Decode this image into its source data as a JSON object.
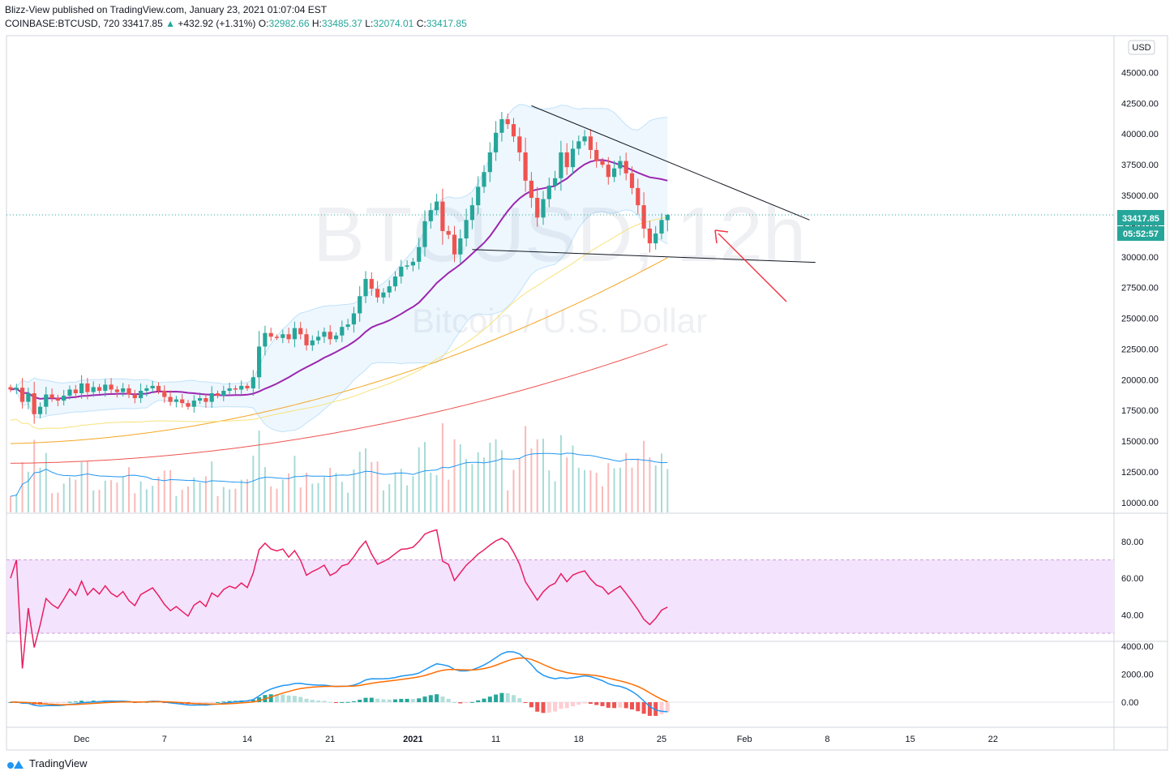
{
  "header": {
    "published_line": "Blizz-View published on TradingView.com, January 23, 2021 01:07:04 EST",
    "symbol": "COINBASE:BTCUSD, 720",
    "last": "33417.85",
    "arrow": "▲",
    "change": "+432.92 (+1.31%)",
    "o_label": "O:",
    "o_value": "32982.66",
    "h_label": "H:",
    "h_value": "33485.37",
    "l_label": "L:",
    "l_value": "32074.01",
    "c_label": "C:",
    "c_value": "33417.85"
  },
  "watermark": {
    "symbol": "BTCUSD, 12h",
    "description": "Bitcoin / U.S. Dollar"
  },
  "currency_badge": "USD",
  "price_tag": {
    "price": "33417.85",
    "countdown": "05:52:57"
  },
  "footer": {
    "brand": "TradingView"
  },
  "colors": {
    "up": "#26a69a",
    "down": "#ef5350",
    "bb": "#2196f3",
    "ma20": "#9c27b0",
    "ma50": "#f7e27b",
    "ma100": "#f5a623",
    "ma200": "#ef5350",
    "rsi": "#e91e63",
    "macd": "#2196f3",
    "signal": "#ff6d00"
  },
  "chart_data": [
    {
      "type": "candlestick",
      "title": "COINBASE:BTCUSD, 720",
      "y_ticks": [
        10000,
        12500,
        15000,
        17500,
        20000,
        22500,
        25000,
        27500,
        30000,
        32500,
        35000,
        37500,
        40000,
        42500,
        45000
      ],
      "y_tick_labels": [
        "10000.00",
        "12500.00",
        "15000.00",
        "17500.00",
        "20000.00",
        "22500.00",
        "25000.00",
        "27500.00",
        "30000.00",
        "32500.00",
        "35000.00",
        "37500.00",
        "40000.00",
        "42500.00",
        "45000.00"
      ],
      "ylim": [
        9200,
        48000
      ],
      "x_tick_labels": [
        "Dec",
        "7",
        "14",
        "21",
        "2021",
        "11",
        "18",
        "25",
        "Feb",
        "8",
        "15",
        "22"
      ],
      "x_tick_bar_index": [
        12,
        26,
        40,
        54,
        68,
        82,
        96,
        110,
        124,
        138,
        152,
        166
      ],
      "closes": [
        19200,
        19350,
        18200,
        18900,
        17200,
        17800,
        18800,
        18500,
        18300,
        18700,
        19200,
        18900,
        19700,
        19000,
        19400,
        19100,
        19600,
        19200,
        19000,
        19300,
        18800,
        18500,
        19100,
        19300,
        19500,
        19100,
        18600,
        18200,
        18400,
        18100,
        17800,
        18300,
        18500,
        18200,
        18900,
        18700,
        19100,
        19300,
        19200,
        19500,
        19300,
        20200,
        22700,
        23800,
        23500,
        23400,
        23700,
        23300,
        24200,
        23700,
        22800,
        23200,
        23500,
        23900,
        23300,
        23600,
        24300,
        24500,
        25400,
        26800,
        28200,
        27400,
        26700,
        27100,
        27600,
        28400,
        29200,
        29300,
        29600,
        30800,
        32900,
        33800,
        34500,
        32100,
        31800,
        30200,
        31500,
        33000,
        34200,
        35700,
        36900,
        38500,
        40100,
        41200,
        40800,
        39800,
        38500,
        36200,
        34800,
        33200,
        34700,
        35800,
        36400,
        38500,
        37300,
        38800,
        39400,
        39800,
        38700,
        37800,
        37500,
        36500,
        37200,
        37800,
        36800,
        35600,
        34200,
        32300,
        31100,
        31900,
        33000,
        33417.85
      ],
      "overlays": [
        "Bollinger Bands",
        "MA 20",
        "MA 50",
        "MA 100",
        "MA 200",
        "Volume",
        "Volume MA"
      ],
      "annotations": [
        "descending resistance trendline",
        "support trendline",
        "red arrow"
      ]
    },
    {
      "type": "line",
      "title": "RSI",
      "y_ticks": [
        40,
        60,
        80
      ],
      "y_tick_labels": [
        "40.00",
        "60.00",
        "80.00"
      ],
      "ylim": [
        26,
        95
      ],
      "band": [
        30,
        70
      ]
    },
    {
      "type": "line",
      "title": "MACD",
      "y_ticks": [
        0,
        2000,
        4000
      ],
      "y_tick_labels": [
        "0.00",
        "2000.00",
        "4000.00"
      ],
      "ylim": [
        -1800,
        4300
      ]
    }
  ]
}
